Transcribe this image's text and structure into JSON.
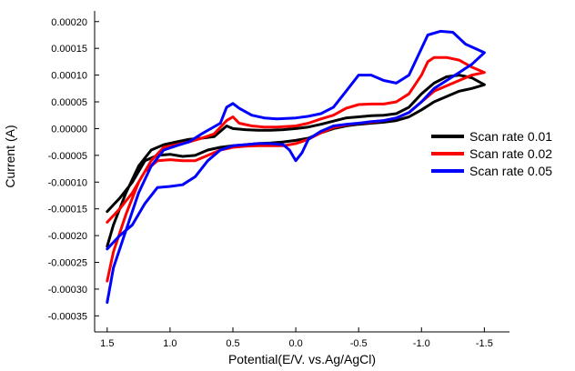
{
  "chart_data": {
    "type": "line",
    "title": "",
    "xlabel": "Potential(E/V. vs.Ag/AgCl)",
    "ylabel": "Current (A)",
    "xlim": [
      1.6,
      -1.7
    ],
    "ylim": [
      -0.00038,
      0.00022
    ],
    "x_reversed": true,
    "x_ticks": [
      1.5,
      1.0,
      0.5,
      0.0,
      -0.5,
      -1.0,
      -1.5
    ],
    "x_tick_labels": [
      "1.5",
      "1.0",
      "0.5",
      "0.0",
      "-0.5",
      "-1.0",
      "-1.5"
    ],
    "y_ticks": [
      0.0002,
      0.00015,
      0.0001,
      5e-05,
      0.0,
      -5e-05,
      -0.0001,
      -0.00015,
      -0.0002,
      -0.00025,
      -0.0003,
      -0.00035
    ],
    "y_tick_labels": [
      "0.00020",
      "0.00015",
      "0.00010",
      "0.00005",
      "0.00000",
      "-0.00005",
      "-0.00010",
      "-0.00015",
      "-0.00020",
      "-0.00025",
      "-0.00030",
      "-0.00035"
    ],
    "grid": false,
    "legend_position": "right",
    "series": [
      {
        "name": "Scan rate 0.01",
        "color": "#000000",
        "points": [
          [
            1.5,
            -0.00022
          ],
          [
            1.45,
            -0.00018
          ],
          [
            1.35,
            -0.00012
          ],
          [
            1.25,
            -7e-05
          ],
          [
            1.15,
            -4e-05
          ],
          [
            1.05,
            -3e-05
          ],
          [
            0.95,
            -2.5e-05
          ],
          [
            0.85,
            -2e-05
          ],
          [
            0.75,
            -1.8e-05
          ],
          [
            0.65,
            -1.5e-05
          ],
          [
            0.55,
            5e-06
          ],
          [
            0.5,
            0.0
          ],
          [
            0.4,
            -2e-06
          ],
          [
            0.3,
            -3e-06
          ],
          [
            0.2,
            -3e-06
          ],
          [
            0.1,
            -2e-06
          ],
          [
            0.0,
            0.0
          ],
          [
            -0.1,
            3e-06
          ],
          [
            -0.2,
            8e-06
          ],
          [
            -0.3,
            1.4e-05
          ],
          [
            -0.4,
            2e-05
          ],
          [
            -0.5,
            2.2e-05
          ],
          [
            -0.6,
            2.4e-05
          ],
          [
            -0.7,
            2.5e-05
          ],
          [
            -0.8,
            2.8e-05
          ],
          [
            -0.9,
            4e-05
          ],
          [
            -1.0,
            6.5e-05
          ],
          [
            -1.1,
            8.5e-05
          ],
          [
            -1.2,
            9.7e-05
          ],
          [
            -1.3,
            0.0001
          ],
          [
            -1.4,
            9.5e-05
          ],
          [
            -1.5,
            8.2e-05
          ],
          [
            -1.4,
            7.5e-05
          ],
          [
            -1.3,
            7e-05
          ],
          [
            -1.2,
            6e-05
          ],
          [
            -1.1,
            5e-05
          ],
          [
            -1.0,
            3.5e-05
          ],
          [
            -0.9,
            2.2e-05
          ],
          [
            -0.8,
            1.5e-05
          ],
          [
            -0.7,
            1.2e-05
          ],
          [
            -0.6,
            1e-05
          ],
          [
            -0.5,
            8e-06
          ],
          [
            -0.4,
            5e-06
          ],
          [
            -0.3,
            0.0
          ],
          [
            -0.2,
            -8e-06
          ],
          [
            -0.1,
            -1.8e-05
          ],
          [
            0.0,
            -2.2e-05
          ],
          [
            0.1,
            -2.5e-05
          ],
          [
            0.2,
            -2.7e-05
          ],
          [
            0.3,
            -2.8e-05
          ],
          [
            0.4,
            -3e-05
          ],
          [
            0.5,
            -3.2e-05
          ],
          [
            0.6,
            -3.5e-05
          ],
          [
            0.7,
            -4e-05
          ],
          [
            0.8,
            -5e-05
          ],
          [
            0.9,
            -5.2e-05
          ],
          [
            1.0,
            -4.8e-05
          ],
          [
            1.1,
            -5e-05
          ],
          [
            1.2,
            -6e-05
          ],
          [
            1.3,
            -0.0001
          ],
          [
            1.4,
            -0.00013
          ],
          [
            1.5,
            -0.000155
          ]
        ]
      },
      {
        "name": "Scan rate 0.02",
        "color": "#ff0000",
        "points": [
          [
            1.5,
            -0.000285
          ],
          [
            1.45,
            -0.00023
          ],
          [
            1.35,
            -0.00016
          ],
          [
            1.25,
            -0.0001
          ],
          [
            1.15,
            -6e-05
          ],
          [
            1.05,
            -3.5e-05
          ],
          [
            0.95,
            -3e-05
          ],
          [
            0.85,
            -2.5e-05
          ],
          [
            0.75,
            -1.8e-05
          ],
          [
            0.65,
            -1e-05
          ],
          [
            0.55,
            1.5e-05
          ],
          [
            0.5,
            2.2e-05
          ],
          [
            0.45,
            1e-05
          ],
          [
            0.35,
            5e-06
          ],
          [
            0.25,
            3e-06
          ],
          [
            0.15,
            3e-06
          ],
          [
            0.0,
            5e-06
          ],
          [
            -0.1,
            1e-05
          ],
          [
            -0.2,
            1.8e-05
          ],
          [
            -0.3,
            2.5e-05
          ],
          [
            -0.4,
            3.8e-05
          ],
          [
            -0.5,
            4.5e-05
          ],
          [
            -0.6,
            4.6e-05
          ],
          [
            -0.7,
            4.6e-05
          ],
          [
            -0.8,
            5e-05
          ],
          [
            -0.9,
            6.5e-05
          ],
          [
            -1.0,
            0.0001
          ],
          [
            -1.05,
            0.000125
          ],
          [
            -1.1,
            0.000133
          ],
          [
            -1.2,
            0.000133
          ],
          [
            -1.3,
            0.000128
          ],
          [
            -1.4,
            0.000115
          ],
          [
            -1.5,
            0.000105
          ],
          [
            -1.4,
            0.0001
          ],
          [
            -1.3,
            9e-05
          ],
          [
            -1.2,
            8e-05
          ],
          [
            -1.1,
            7e-05
          ],
          [
            -1.0,
            5e-05
          ],
          [
            -0.9,
            3e-05
          ],
          [
            -0.8,
            2e-05
          ],
          [
            -0.7,
            1.5e-05
          ],
          [
            -0.6,
            1.2e-05
          ],
          [
            -0.5,
            1e-05
          ],
          [
            -0.4,
            7e-06
          ],
          [
            -0.3,
            2e-06
          ],
          [
            -0.2,
            -8e-06
          ],
          [
            -0.1,
            -2e-05
          ],
          [
            0.0,
            -2.8e-05
          ],
          [
            0.1,
            -3.2e-05
          ],
          [
            0.2,
            -3.2e-05
          ],
          [
            0.3,
            -3.2e-05
          ],
          [
            0.4,
            -3.3e-05
          ],
          [
            0.5,
            -3.5e-05
          ],
          [
            0.6,
            -4e-05
          ],
          [
            0.7,
            -5e-05
          ],
          [
            0.8,
            -6e-05
          ],
          [
            0.9,
            -6e-05
          ],
          [
            1.0,
            -5.8e-05
          ],
          [
            1.1,
            -6e-05
          ],
          [
            1.2,
            -8e-05
          ],
          [
            1.3,
            -0.00012
          ],
          [
            1.4,
            -0.00015
          ],
          [
            1.5,
            -0.000175
          ]
        ]
      },
      {
        "name": "Scan rate 0.05",
        "color": "#0000ff",
        "points": [
          [
            1.5,
            -0.000325
          ],
          [
            1.45,
            -0.00026
          ],
          [
            1.35,
            -0.00019
          ],
          [
            1.25,
            -0.00012
          ],
          [
            1.15,
            -7e-05
          ],
          [
            1.05,
            -4e-05
          ],
          [
            0.95,
            -3.2e-05
          ],
          [
            0.85,
            -2.5e-05
          ],
          [
            0.75,
            -1e-05
          ],
          [
            0.6,
            1e-05
          ],
          [
            0.55,
            4e-05
          ],
          [
            0.5,
            4.7e-05
          ],
          [
            0.45,
            3.8e-05
          ],
          [
            0.35,
            2.5e-05
          ],
          [
            0.25,
            2e-05
          ],
          [
            0.15,
            1.8e-05
          ],
          [
            0.0,
            2e-05
          ],
          [
            -0.1,
            2.3e-05
          ],
          [
            -0.2,
            2.8e-05
          ],
          [
            -0.3,
            4e-05
          ],
          [
            -0.4,
            7e-05
          ],
          [
            -0.5,
            0.0001
          ],
          [
            -0.6,
            0.0001
          ],
          [
            -0.7,
            9e-05
          ],
          [
            -0.8,
            8.5e-05
          ],
          [
            -0.9,
            0.0001
          ],
          [
            -1.0,
            0.00015
          ],
          [
            -1.05,
            0.000175
          ],
          [
            -1.15,
            0.000182
          ],
          [
            -1.25,
            0.00018
          ],
          [
            -1.35,
            0.000158
          ],
          [
            -1.5,
            0.000142
          ],
          [
            -1.4,
            0.00012
          ],
          [
            -1.3,
            0.000105
          ],
          [
            -1.2,
            9e-05
          ],
          [
            -1.1,
            7.5e-05
          ],
          [
            -1.0,
            5e-05
          ],
          [
            -0.9,
            3e-05
          ],
          [
            -0.8,
            2e-05
          ],
          [
            -0.7,
            1.5e-05
          ],
          [
            -0.6,
            1.3e-05
          ],
          [
            -0.5,
            1e-05
          ],
          [
            -0.4,
            8e-06
          ],
          [
            -0.3,
            5e-06
          ],
          [
            -0.2,
            -5e-06
          ],
          [
            -0.1,
            -2e-05
          ],
          [
            -0.05,
            -4.5e-05
          ],
          [
            0.0,
            -6e-05
          ],
          [
            0.05,
            -4e-05
          ],
          [
            0.1,
            -3e-05
          ],
          [
            0.2,
            -2.8e-05
          ],
          [
            0.3,
            -2.8e-05
          ],
          [
            0.4,
            -3e-05
          ],
          [
            0.5,
            -3.2e-05
          ],
          [
            0.6,
            -4e-05
          ],
          [
            0.7,
            -6e-05
          ],
          [
            0.8,
            -9e-05
          ],
          [
            0.9,
            -0.000105
          ],
          [
            1.0,
            -0.000108
          ],
          [
            1.1,
            -0.00011
          ],
          [
            1.2,
            -0.00014
          ],
          [
            1.3,
            -0.00018
          ],
          [
            1.4,
            -0.0002
          ],
          [
            1.5,
            -0.000225
          ]
        ]
      }
    ]
  }
}
